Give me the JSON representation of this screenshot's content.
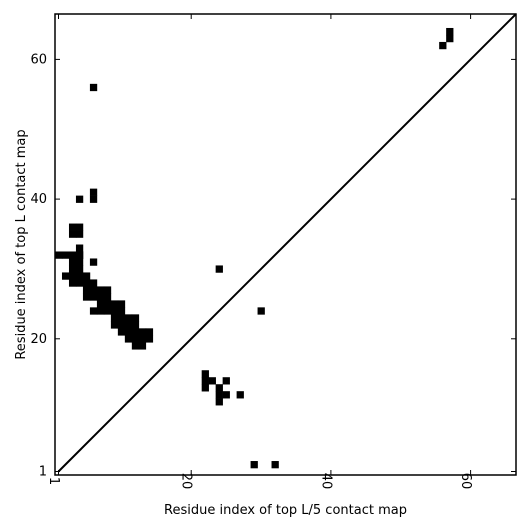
{
  "chart_data": {
    "type": "heatmap",
    "title": "",
    "xlabel": "Residue index of top L/5 contact map",
    "ylabel": "Residue index of top L contact map",
    "xlim": [
      0.5,
      66.5
    ],
    "ylim": [
      0.5,
      66.5
    ],
    "xticks": [
      1,
      20,
      40,
      60
    ],
    "yticks": [
      1,
      20,
      40,
      60
    ],
    "diagonal": true,
    "cell_color": "#000000",
    "upper_cells": [
      [
        57,
        63
      ],
      [
        57,
        64
      ],
      [
        56,
        62
      ],
      [
        6,
        56
      ],
      [
        6,
        40
      ],
      [
        6,
        41
      ],
      [
        4,
        40
      ],
      [
        3,
        35
      ],
      [
        4,
        35
      ],
      [
        3,
        36
      ],
      [
        4,
        36
      ],
      [
        4,
        33
      ],
      [
        4,
        32
      ],
      [
        6,
        31
      ],
      [
        24,
        30
      ],
      [
        1,
        32
      ],
      [
        2,
        32
      ],
      [
        3,
        32
      ],
      [
        4,
        32
      ],
      [
        3,
        31
      ],
      [
        4,
        31
      ],
      [
        3,
        30
      ],
      [
        4,
        30
      ],
      [
        2,
        29
      ],
      [
        3,
        29
      ],
      [
        4,
        29
      ],
      [
        5,
        29
      ],
      [
        3,
        28
      ],
      [
        4,
        28
      ],
      [
        5,
        28
      ],
      [
        6,
        28
      ],
      [
        5,
        27
      ],
      [
        6,
        27
      ],
      [
        7,
        27
      ],
      [
        8,
        27
      ],
      [
        5,
        26
      ],
      [
        6,
        26
      ],
      [
        7,
        26
      ],
      [
        8,
        26
      ],
      [
        7,
        25
      ],
      [
        8,
        25
      ],
      [
        9,
        25
      ],
      [
        10,
        25
      ],
      [
        6,
        24
      ],
      [
        7,
        24
      ],
      [
        8,
        24
      ],
      [
        9,
        24
      ],
      [
        10,
        24
      ],
      [
        30,
        24
      ],
      [
        9,
        23
      ],
      [
        10,
        23
      ],
      [
        11,
        23
      ],
      [
        12,
        23
      ],
      [
        9,
        22
      ],
      [
        10,
        22
      ],
      [
        11,
        22
      ],
      [
        12,
        22
      ],
      [
        10,
        21
      ],
      [
        11,
        21
      ],
      [
        12,
        21
      ],
      [
        13,
        21
      ],
      [
        14,
        21
      ],
      [
        11,
        20
      ],
      [
        12,
        20
      ],
      [
        13,
        20
      ],
      [
        14,
        20
      ],
      [
        12,
        19
      ],
      [
        13,
        19
      ]
    ],
    "lower_cells": [
      [
        22,
        15
      ],
      [
        22,
        14
      ],
      [
        23,
        14
      ],
      [
        25,
        14
      ],
      [
        22,
        13
      ],
      [
        24,
        13
      ],
      [
        24,
        12
      ],
      [
        25,
        12
      ],
      [
        27,
        12
      ],
      [
        24,
        11
      ],
      [
        29,
        2
      ],
      [
        32,
        2
      ]
    ]
  }
}
